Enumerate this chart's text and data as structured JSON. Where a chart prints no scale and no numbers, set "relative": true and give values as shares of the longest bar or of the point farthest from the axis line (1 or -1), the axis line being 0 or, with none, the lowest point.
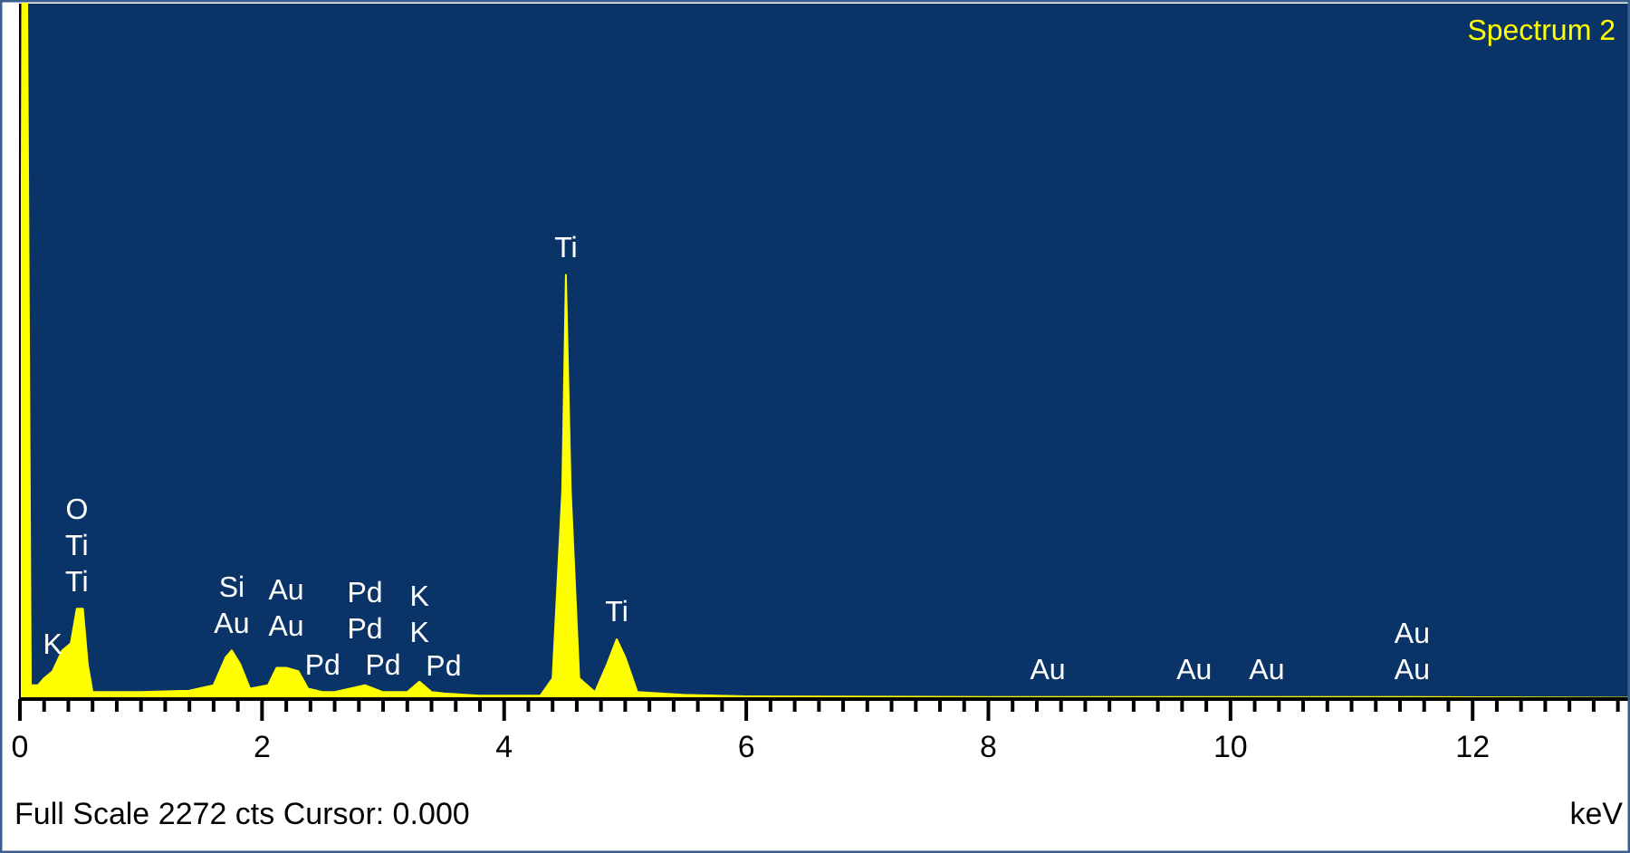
{
  "chart_data": {
    "type": "area",
    "relative": true,
    "xlabel": "keV",
    "xlim": [
      0,
      13.3
    ],
    "xticks": [
      0,
      {
        "value": 0.2,
        "label": null
      },
      {
        "value": 0.4,
        "label": null
      },
      {
        "value": 0.6,
        "label": null
      },
      {
        "value": 0.8,
        "label": null
      },
      {
        "value": 1,
        "label": null
      },
      {
        "value": 1.2,
        "label": null
      },
      {
        "value": 1.4,
        "label": null
      },
      {
        "value": 1.6,
        "label": null
      },
      {
        "value": 1.8,
        "label": null
      },
      2,
      {
        "value": 2.2,
        "label": null
      },
      {
        "value": 2.4,
        "label": null
      },
      {
        "value": 2.6,
        "label": null
      },
      {
        "value": 2.8,
        "label": null
      },
      {
        "value": 3,
        "label": null
      },
      {
        "value": 3.2,
        "label": null
      },
      {
        "value": 3.4,
        "label": null
      },
      {
        "value": 3.6,
        "label": null
      },
      {
        "value": 3.8,
        "label": null
      },
      4,
      {
        "value": 4.2,
        "label": null
      },
      {
        "value": 4.4,
        "label": null
      },
      {
        "value": 4.6,
        "label": null
      },
      {
        "value": 4.8,
        "label": null
      },
      {
        "value": 5,
        "label": null
      },
      {
        "value": 5.2,
        "label": null
      },
      {
        "value": 5.4,
        "label": null
      },
      {
        "value": 5.6,
        "label": null
      },
      {
        "value": 5.8,
        "label": null
      },
      6,
      {
        "value": 6.2,
        "label": null
      },
      {
        "value": 6.4,
        "label": null
      },
      {
        "value": 6.6,
        "label": null
      },
      {
        "value": 6.8,
        "label": null
      },
      {
        "value": 7,
        "label": null
      },
      {
        "value": 7.2,
        "label": null
      },
      {
        "value": 7.4,
        "label": null
      },
      {
        "value": 7.6,
        "label": null
      },
      {
        "value": 7.8,
        "label": null
      },
      8,
      {
        "value": 8.2,
        "label": null
      },
      {
        "value": 8.4,
        "label": null
      },
      {
        "value": 8.6,
        "label": null
      },
      {
        "value": 8.8,
        "label": null
      },
      {
        "value": 9,
        "label": null
      },
      {
        "value": 9.2,
        "label": null
      },
      {
        "value": 9.4,
        "label": null
      },
      {
        "value": 9.6,
        "label": null
      },
      {
        "value": 9.8,
        "label": null
      },
      10,
      {
        "value": 10.2,
        "label": null
      },
      {
        "value": 10.4,
        "label": null
      },
      {
        "value": 10.6,
        "label": null
      },
      {
        "value": 10.8,
        "label": null
      },
      {
        "value": 11,
        "label": null
      },
      {
        "value": 11.2,
        "label": null
      },
      {
        "value": 11.4,
        "label": null
      },
      {
        "value": 11.6,
        "label": null
      },
      {
        "value": 11.8,
        "label": null
      },
      12,
      {
        "value": 12.2,
        "label": null
      },
      {
        "value": 12.4,
        "label": null
      },
      {
        "value": 12.6,
        "label": null
      },
      {
        "value": 12.8,
        "label": null
      },
      {
        "value": 13,
        "label": null
      },
      {
        "value": 13.2,
        "label": null
      }
    ],
    "legend": "top right",
    "series": [
      {
        "name": "Spectrum 2",
        "color": "#ffff00",
        "x": [
          0,
          0.02,
          0.06,
          0.09,
          0.15,
          0.2,
          0.27,
          0.35,
          0.42,
          0.47,
          0.52,
          0.56,
          0.6,
          1.0,
          1.4,
          1.6,
          1.7,
          1.75,
          1.82,
          1.9,
          2.05,
          2.12,
          2.2,
          2.3,
          2.38,
          2.5,
          2.6,
          2.85,
          3.0,
          3.2,
          3.3,
          3.4,
          3.5,
          3.8,
          4.3,
          4.4,
          4.48,
          4.51,
          4.55,
          4.62,
          4.75,
          4.85,
          4.93,
          5.0,
          5.1,
          5.5,
          6,
          8,
          8.49,
          9.7,
          10.3,
          11.5,
          13.3
        ],
        "values": [
          0,
          1,
          1,
          0.02,
          0.02,
          0.03,
          0.04,
          0.07,
          0.08,
          0.13,
          0.13,
          0.05,
          0.01,
          0.01,
          0.012,
          0.02,
          0.06,
          0.07,
          0.05,
          0.015,
          0.02,
          0.045,
          0.045,
          0.04,
          0.015,
          0.01,
          0.01,
          0.02,
          0.01,
          0.01,
          0.025,
          0.01,
          0.008,
          0.005,
          0.005,
          0.03,
          0.3,
          0.61,
          0.3,
          0.03,
          0.01,
          0.05,
          0.086,
          0.06,
          0.01,
          0.006,
          0.004,
          0.003,
          0.003,
          0.003,
          0.003,
          0.003,
          0.002
        ]
      }
    ],
    "annotations": [
      {
        "text": "K",
        "x": 0.27,
        "y": 0.04
      },
      {
        "text": "Ti",
        "x": 0.47,
        "y": 0.13
      },
      {
        "text": "Ti",
        "x": 0.47,
        "y": 0.13
      },
      {
        "text": "O",
        "x": 0.47,
        "y": 0.13
      },
      {
        "text": "Au",
        "x": 1.75,
        "y": 0.07
      },
      {
        "text": "Si",
        "x": 1.75,
        "y": 0.07
      },
      {
        "text": "Pd",
        "x": 2.5,
        "y": 0.01
      },
      {
        "text": "Pd",
        "x": 3.0,
        "y": 0.01
      },
      {
        "text": "Pd",
        "x": 3.5,
        "y": 0.008
      },
      {
        "text": "Au",
        "x": 2.2,
        "y": 0.045
      },
      {
        "text": "Au",
        "x": 2.2,
        "y": 0.045
      },
      {
        "text": "Pd",
        "x": 2.85,
        "y": 0.02
      },
      {
        "text": "Pd",
        "x": 2.85,
        "y": 0.02
      },
      {
        "text": "K",
        "x": 3.3,
        "y": 0.025
      },
      {
        "text": "K",
        "x": 3.3,
        "y": 0.025
      },
      {
        "text": "Ti",
        "x": 4.51,
        "y": 0.61
      },
      {
        "text": "Ti",
        "x": 4.93,
        "y": 0.086
      },
      {
        "text": "Au",
        "x": 8.49,
        "y": 0.003
      },
      {
        "text": "Au",
        "x": 9.7,
        "y": 0.003
      },
      {
        "text": "Au",
        "x": 10.3,
        "y": 0.003
      },
      {
        "text": "Au",
        "x": 11.5,
        "y": 0.003
      },
      {
        "text": "Au",
        "x": 11.5,
        "y": 0.003
      },
      "Full Scale 2272 cts Cursor: 0.000"
    ]
  }
}
